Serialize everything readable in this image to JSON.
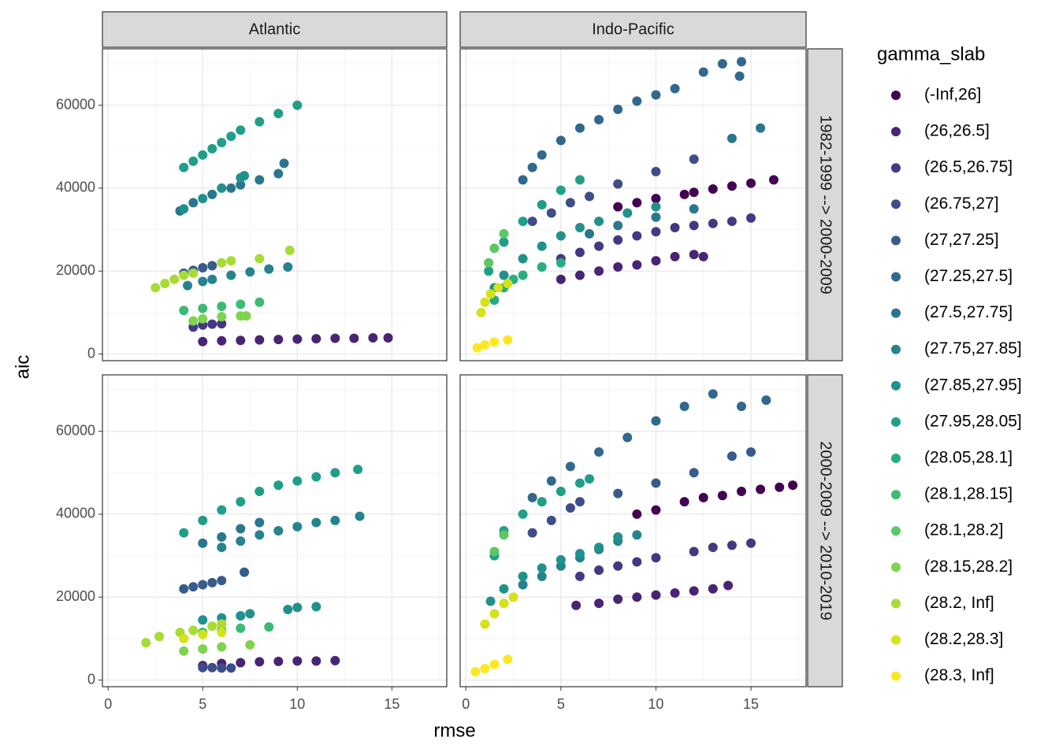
{
  "chart_data": {
    "type": "scatter",
    "xlabel": "rmse",
    "ylabel": "aic",
    "legend_title": "gamma_slab",
    "columns": [
      "Atlantic",
      "Indo-Pacific"
    ],
    "rows": [
      "1982-1999 --> 2000-2009",
      "2000-2009 --> 2010-2019"
    ],
    "xlim": [
      -0.3,
      17.9
    ],
    "ylim": [
      -1600,
      73600
    ],
    "xticks": [
      0,
      5,
      10,
      15
    ],
    "yticks": [
      0,
      20000,
      40000,
      60000
    ],
    "xminor": [
      2.5,
      7.5,
      12.5,
      17.5
    ],
    "yminor": [
      10000,
      30000,
      50000,
      70000
    ],
    "grid": true,
    "series": [
      {
        "name": "(-Inf,26]",
        "color": "#440154"
      },
      {
        "name": "(26,26.5]",
        "color": "#482475"
      },
      {
        "name": "(26.5,26.75]",
        "color": "#453882"
      },
      {
        "name": "(26.75,27]",
        "color": "#3E4C8A"
      },
      {
        "name": "(27,27.25]",
        "color": "#365B8C"
      },
      {
        "name": "(27.25,27.5]",
        "color": "#30688E"
      },
      {
        "name": "(27.5,27.75]",
        "color": "#2A768E"
      },
      {
        "name": "(27.75,27.85]",
        "color": "#25838E"
      },
      {
        "name": "(27.85,27.95]",
        "color": "#21918C"
      },
      {
        "name": "(27.95,28.05]",
        "color": "#1F9F88"
      },
      {
        "name": "(28.05,28.1]",
        "color": "#27AD81"
      },
      {
        "name": "(28.1,28.15]",
        "color": "#3BBB75"
      },
      {
        "name": "(28.1,28.2]",
        "color": "#5AC864"
      },
      {
        "name": "(28.15,28.2]",
        "color": "#7FD34E"
      },
      {
        "name": "(28.2, Inf]",
        "color": "#A8DB34"
      },
      {
        "name": "(28.2,28.3]",
        "color": "#D4E21A"
      },
      {
        "name": "(28.3, Inf]",
        "color": "#FDE725"
      }
    ],
    "facets": [
      {
        "series": [
          {
            "x": [],
            "y": []
          },
          {
            "x": [
              5,
              6,
              7,
              8,
              9,
              10,
              11,
              12,
              13,
              14,
              14.8
            ],
            "y": [
              3000,
              3200,
              3300,
              3400,
              3500,
              3600,
              3700,
              3800,
              3800,
              3900,
              3900
            ]
          },
          {
            "x": [
              4.5,
              5,
              5.5,
              6
            ],
            "y": [
              6500,
              7000,
              7200,
              7300
            ]
          },
          {
            "x": [],
            "y": []
          },
          {
            "x": [
              4,
              4.5,
              5,
              5.5
            ],
            "y": [
              19500,
              20200,
              20800,
              21300
            ]
          },
          {
            "x": [],
            "y": []
          },
          {
            "x": [
              3.8,
              4.5,
              5.5,
              6.5,
              7,
              8,
              9,
              9.3
            ],
            "y": [
              34500,
              36500,
              38500,
              40000,
              40800,
              42000,
              43500,
              46000
            ]
          },
          {
            "x": [
              4.2,
              5,
              5.5,
              6.5,
              7.5,
              8.5,
              9.5
            ],
            "y": [
              16500,
              17500,
              18000,
              19000,
              19800,
              20500,
              21000
            ]
          },
          {
            "x": [
              4,
              5,
              6,
              7,
              7.2
            ],
            "y": [
              35000,
              37500,
              40000,
              42500,
              43000
            ]
          },
          {
            "x": [
              4,
              4.5,
              5,
              5.5,
              6,
              6.5,
              7,
              8,
              9,
              10
            ],
            "y": [
              45000,
              46500,
              48000,
              49500,
              51000,
              52500,
              54000,
              56000,
              58000,
              60000
            ]
          },
          {
            "x": [],
            "y": []
          },
          {
            "x": [
              4,
              5,
              6,
              7,
              8
            ],
            "y": [
              10500,
              11000,
              11500,
              12000,
              12500
            ]
          },
          {
            "x": [],
            "y": []
          },
          {
            "x": [
              4.5,
              5,
              6,
              7,
              7.3
            ],
            "y": [
              8000,
              8500,
              9000,
              9200,
              9200
            ]
          },
          {
            "x": [
              2.5,
              3,
              3.5,
              4,
              4.5,
              6,
              6.5,
              8,
              9.6
            ],
            "y": [
              16000,
              17000,
              18000,
              19000,
              19500,
              22000,
              22500,
              23000,
              25000
            ]
          },
          {
            "x": [],
            "y": []
          },
          {
            "x": [],
            "y": []
          }
        ]
      },
      {
        "series": [
          {
            "x": [
              8,
              9,
              10,
              11.5,
              12,
              13,
              14,
              15,
              16.2
            ],
            "y": [
              35500,
              36500,
              37500,
              38500,
              39000,
              39800,
              40500,
              41200,
              42000
            ]
          },
          {
            "x": [
              5,
              6,
              7,
              8,
              9,
              10,
              11,
              12,
              12.5
            ],
            "y": [
              18000,
              19000,
              20000,
              21000,
              21500,
              22500,
              23500,
              24000,
              23500
            ]
          },
          {
            "x": [
              5,
              6,
              7,
              8,
              9,
              10,
              11,
              12,
              13,
              14,
              15
            ],
            "y": [
              23000,
              24500,
              26000,
              27500,
              28500,
              29500,
              30500,
              31000,
              31500,
              32000,
              32800
            ]
          },
          {
            "x": [
              3.5,
              4.5,
              5.5,
              6.5,
              8,
              10,
              12
            ],
            "y": [
              32000,
              34000,
              36500,
              38000,
              41000,
              44000,
              47000
            ]
          },
          {
            "x": [],
            "y": []
          },
          {
            "x": [
              3,
              3.5,
              4,
              5,
              6,
              7,
              8,
              9,
              10,
              11,
              12.5,
              13.5,
              14.5,
              14.4
            ],
            "y": [
              42000,
              45000,
              48000,
              51500,
              54500,
              56500,
              59000,
              61000,
              62500,
              64000,
              68000,
              70000,
              70500,
              67000
            ]
          },
          {
            "x": [
              6.5,
              8,
              10,
              12,
              14,
              15.5
            ],
            "y": [
              29000,
              31000,
              33000,
              35000,
              52000,
              54500
            ]
          },
          {
            "x": [],
            "y": []
          },
          {
            "x": [
              1.5,
              2,
              3,
              4,
              5,
              6,
              7,
              8.5,
              10
            ],
            "y": [
              16000,
              19000,
              23000,
              26000,
              28500,
              30500,
              32000,
              34000,
              35500
            ]
          },
          {
            "x": [
              1.2,
              2,
              3,
              4,
              5,
              6
            ],
            "y": [
              20000,
              27000,
              32000,
              36000,
              39500,
              42000
            ]
          },
          {
            "x": [
              1.5,
              2,
              2.5,
              3,
              4,
              5
            ],
            "y": [
              13000,
              16000,
              18000,
              19000,
              21000,
              22000
            ]
          },
          {
            "x": [],
            "y": []
          },
          {
            "x": [
              1.2,
              1.5,
              2
            ],
            "y": [
              22000,
              25500,
              29000
            ]
          },
          {
            "x": [],
            "y": []
          },
          {
            "x": [],
            "y": []
          },
          {
            "x": [
              0.8,
              1,
              1.3,
              1.7,
              2.2
            ],
            "y": [
              10000,
              12500,
              14500,
              16000,
              17000
            ]
          },
          {
            "x": [
              0.6,
              1,
              1.5,
              2.2
            ],
            "y": [
              1500,
              2200,
              2900,
              3400
            ]
          }
        ]
      },
      {
        "series": [
          {
            "x": [],
            "y": []
          },
          {
            "x": [
              5,
              6,
              7,
              8,
              9,
              10,
              11,
              12
            ],
            "y": [
              3500,
              4000,
              4200,
              4400,
              4500,
              4600,
              4600,
              4700
            ]
          },
          {
            "x": [],
            "y": []
          },
          {
            "x": [
              5,
              5.5,
              6,
              6.5
            ],
            "y": [
              3000,
              3000,
              2900,
              2900
            ]
          },
          {
            "x": [
              4,
              4.5,
              5,
              5.5,
              6,
              7.2
            ],
            "y": [
              22000,
              22500,
              23000,
              23500,
              24000,
              26000
            ]
          },
          {
            "x": [],
            "y": []
          },
          {
            "x": [
              5,
              6,
              7,
              8
            ],
            "y": [
              33000,
              34500,
              36500,
              38000
            ]
          },
          {
            "x": [
              6,
              7,
              8,
              9,
              10,
              11,
              12,
              13.3
            ],
            "y": [
              32000,
              33500,
              35000,
              36000,
              37000,
              38000,
              38500,
              39500
            ]
          },
          {
            "x": [
              5,
              6,
              7,
              7.5,
              9.5,
              10,
              11
            ],
            "y": [
              14500,
              15000,
              15500,
              16000,
              17000,
              17500,
              17700
            ]
          },
          {
            "x": [
              4,
              5,
              6,
              7,
              8,
              9,
              10,
              11,
              12,
              13.2
            ],
            "y": [
              35500,
              38500,
              41000,
              43000,
              45500,
              47000,
              48000,
              49000,
              50000,
              50800
            ]
          },
          {
            "x": [],
            "y": []
          },
          {
            "x": [
              5,
              6,
              7,
              8.5
            ],
            "y": [
              11500,
              12000,
              12500,
              12800
            ]
          },
          {
            "x": [],
            "y": []
          },
          {
            "x": [
              4,
              5,
              6,
              7.5
            ],
            "y": [
              7000,
              7500,
              8000,
              8500
            ]
          },
          {
            "x": [
              2,
              2.7,
              3.8,
              4.5,
              5.5,
              6
            ],
            "y": [
              9000,
              10500,
              11500,
              12000,
              13000,
              13500
            ]
          },
          {
            "x": [
              4,
              5,
              6
            ],
            "y": [
              10000,
              11000,
              11500
            ]
          },
          {
            "x": [],
            "y": []
          }
        ]
      },
      {
        "series": [
          {
            "x": [
              9,
              10,
              11.5,
              12.5,
              13.5,
              14.5,
              15.5,
              16.5,
              17.2
            ],
            "y": [
              40000,
              41000,
              43000,
              44000,
              44500,
              45500,
              46000,
              46500,
              47000
            ]
          },
          {
            "x": [
              5.8,
              7,
              8,
              9,
              10,
              11,
              12,
              13,
              13.8
            ],
            "y": [
              18000,
              18500,
              19500,
              20000,
              20500,
              21000,
              21500,
              22000,
              22800
            ]
          },
          {
            "x": [
              6,
              7,
              8,
              9,
              10,
              12,
              13,
              14,
              15
            ],
            "y": [
              25000,
              26500,
              27500,
              28500,
              29500,
              31000,
              32000,
              32500,
              33000
            ]
          },
          {
            "x": [
              3.5,
              4.5,
              5.5,
              6
            ],
            "y": [
              35500,
              38500,
              41500,
              43000
            ]
          },
          {
            "x": [
              8,
              10,
              12,
              14,
              15
            ],
            "y": [
              45000,
              47500,
              50000,
              54000,
              55000
            ]
          },
          {
            "x": [
              3.5,
              4.5,
              5.5,
              7,
              8.5,
              10,
              11.5,
              13,
              14.5,
              15.8
            ],
            "y": [
              44000,
              48000,
              51500,
              55000,
              58500,
              62500,
              66000,
              69000,
              66000,
              67500
            ]
          },
          {
            "x": [],
            "y": []
          },
          {
            "x": [
              3,
              4,
              5,
              6,
              7,
              8,
              9
            ],
            "y": [
              23000,
              25000,
              27500,
              29500,
              31500,
              33500,
              35000
            ]
          },
          {
            "x": [
              1.3,
              2,
              3,
              4,
              5,
              6,
              7,
              8
            ],
            "y": [
              19000,
              22000,
              25000,
              27000,
              29000,
              30500,
              32000,
              34500
            ]
          },
          {
            "x": [
              1.5,
              2,
              3,
              4,
              5,
              6,
              6.5
            ],
            "y": [
              30000,
              36000,
              40000,
              43000,
              45500,
              47500,
              48500
            ]
          },
          {
            "x": [],
            "y": []
          },
          {
            "x": [],
            "y": []
          },
          {
            "x": [
              1.5,
              2
            ],
            "y": [
              31000,
              35000
            ]
          },
          {
            "x": [],
            "y": []
          },
          {
            "x": [],
            "y": []
          },
          {
            "x": [
              1,
              1.5,
              2,
              2.5
            ],
            "y": [
              13500,
              16000,
              18500,
              20000
            ]
          },
          {
            "x": [
              0.5,
              1,
              1.5,
              2.2
            ],
            "y": [
              2000,
              2800,
              3800,
              5000
            ]
          }
        ]
      }
    ]
  }
}
